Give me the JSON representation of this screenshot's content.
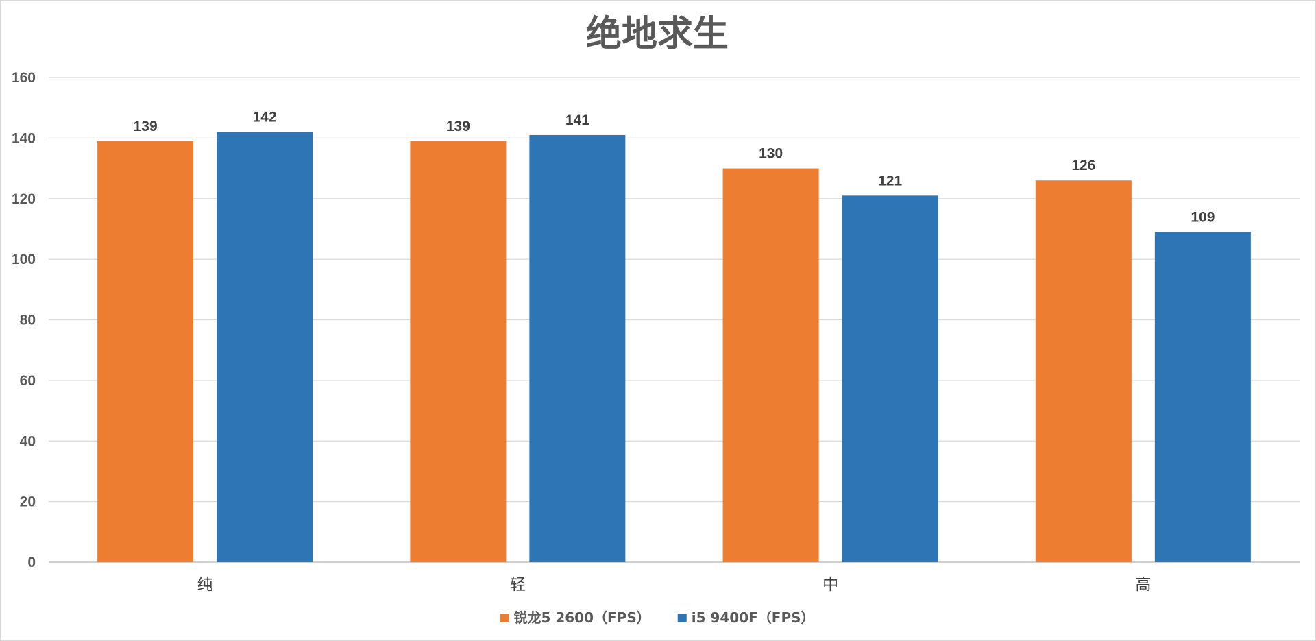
{
  "chart_data": {
    "type": "bar",
    "title": "绝地求生",
    "categories": [
      "纯",
      "轻",
      "中",
      "高"
    ],
    "series": [
      {
        "name": "锐龙5 2600（FPS）",
        "color": "#ED7D31",
        "values": [
          139,
          139,
          130,
          126
        ]
      },
      {
        "name": "i5 9400F（FPS）",
        "color": "#2E75B6",
        "values": [
          142,
          141,
          121,
          109
        ]
      }
    ],
    "ylim": [
      0,
      160
    ],
    "yticks": [
      "0",
      "20",
      "40",
      "60",
      "80",
      "100",
      "120",
      "140",
      "160"
    ],
    "data_labels": true,
    "grid": true,
    "legend": "bottom"
  }
}
